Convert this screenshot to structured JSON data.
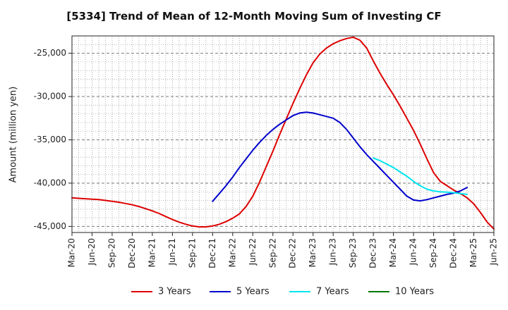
{
  "chart_data": {
    "type": "line",
    "title": "[5334]  Trend of Mean of 12-Month Moving Sum of Investing CF",
    "xlabel": "",
    "ylabel": "Amount (million yen)",
    "ylim": [
      -45700,
      -23000
    ],
    "yticks": [
      -45000,
      -40000,
      -35000,
      -30000,
      -25000
    ],
    "ytick_labels": [
      "-45,000",
      "-40,000",
      "-35,000",
      "-30,000",
      "-25,000"
    ],
    "xticks": [
      "Mar-20",
      "Jun-20",
      "Sep-20",
      "Dec-20",
      "Mar-21",
      "Jun-21",
      "Sep-21",
      "Dec-21",
      "Mar-22",
      "Jun-22",
      "Sep-22",
      "Dec-22",
      "Mar-23",
      "Jun-23",
      "Sep-23",
      "Dec-23",
      "Mar-24",
      "Jun-24",
      "Sep-24",
      "Dec-24",
      "Mar-25",
      "Jun-25"
    ],
    "x_months_per_tick": 3,
    "grid": true,
    "legend_position": "bottom",
    "series": [
      {
        "name": "3 Years",
        "color": "#dd0000",
        "start_month": 0,
        "values": [
          -41700,
          -41750,
          -41800,
          -41850,
          -41900,
          -42000,
          -42100,
          -42200,
          -42350,
          -42500,
          -42700,
          -42950,
          -43200,
          -43500,
          -43850,
          -44200,
          -44500,
          -44750,
          -44950,
          -45050,
          -45050,
          -44950,
          -44750,
          -44450,
          -44050,
          -43550,
          -42700,
          -41500,
          -39900,
          -38100,
          -36300,
          -34400,
          -32600,
          -30800,
          -29100,
          -27500,
          -26100,
          -25100,
          -24400,
          -23900,
          -23550,
          -23300,
          -23150,
          -23500,
          -24400,
          -25900,
          -27300,
          -28600,
          -29800,
          -31100,
          -32500,
          -33900,
          -35500,
          -37200,
          -38800,
          -39800,
          -40300,
          -40800,
          -41200,
          -41700,
          -42400,
          -43400,
          -44500,
          -45300
        ]
      },
      {
        "name": "5 Years",
        "color": "#0000cc",
        "start_month": 21,
        "values": [
          -42100,
          -41200,
          -40300,
          -39300,
          -38200,
          -37200,
          -36200,
          -35300,
          -34500,
          -33800,
          -33200,
          -32700,
          -32200,
          -31900,
          -31800,
          -31900,
          -32100,
          -32300,
          -32500,
          -33000,
          -33800,
          -34800,
          -35800,
          -36700,
          -37500,
          -38300,
          -39100,
          -39900,
          -40700,
          -41500,
          -41950,
          -42050,
          -41900,
          -41700,
          -41500,
          -41300,
          -41150,
          -40900,
          -40500
        ]
      },
      {
        "name": "7 Years",
        "color": "#00e5ee",
        "start_month": 45,
        "values": [
          -37100,
          -37400,
          -37800,
          -38200,
          -38700,
          -39200,
          -39800,
          -40300,
          -40700,
          -40900,
          -41000,
          -41050,
          -41100,
          -41200,
          -41300
        ]
      },
      {
        "name": "10 Years",
        "color": "#007700",
        "start_month": 0,
        "values": []
      }
    ]
  }
}
